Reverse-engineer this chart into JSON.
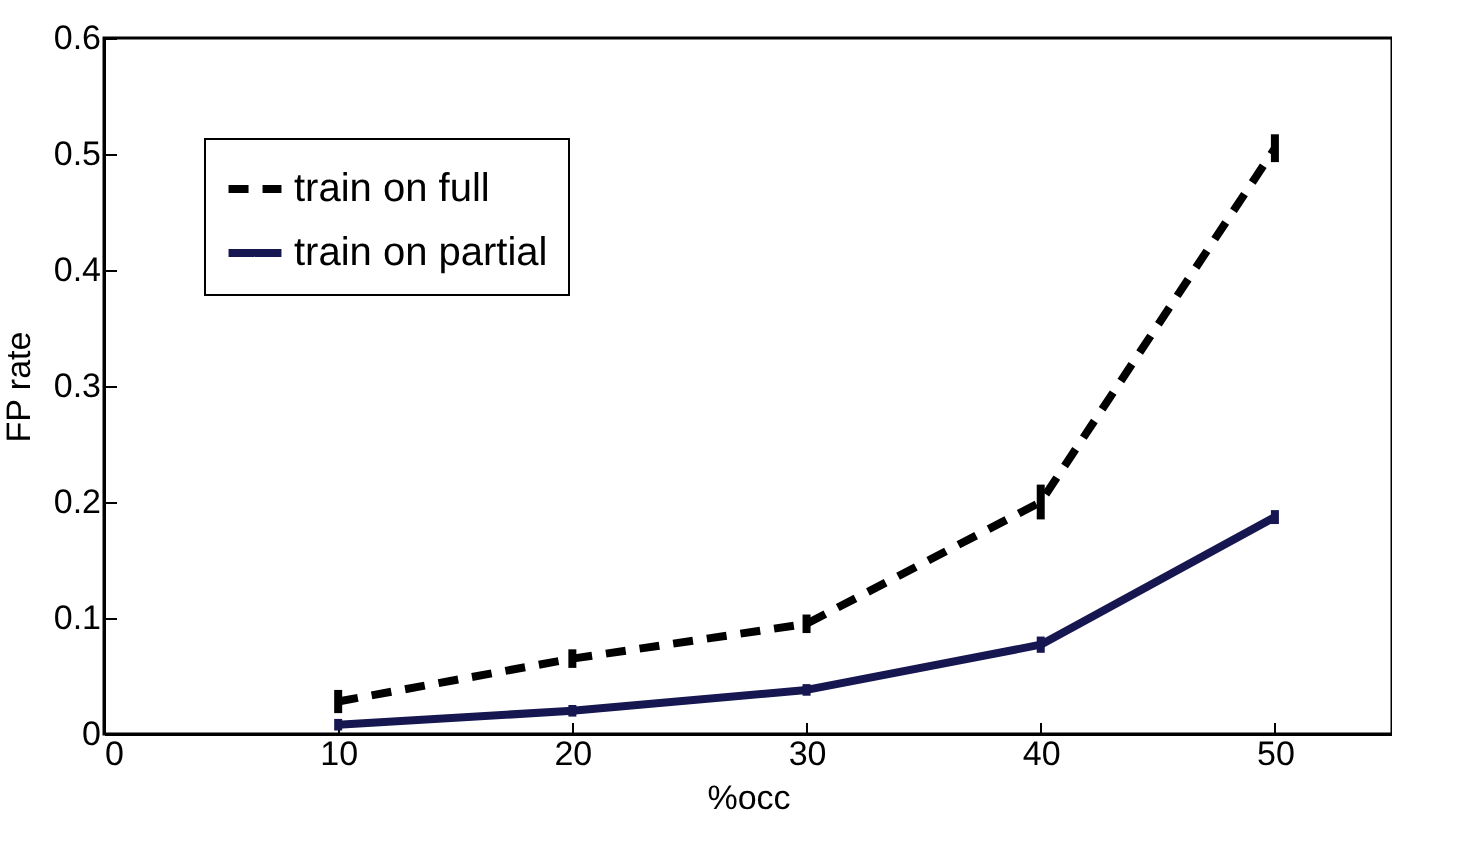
{
  "chart_data": {
    "type": "line",
    "xlabel": "%occ",
    "ylabel": "FP rate",
    "x": [
      10,
      20,
      30,
      40,
      50
    ],
    "series": [
      {
        "name": "train on full",
        "color": "#000000",
        "line_style": "dashed",
        "values": [
          0.028,
          0.065,
          0.095,
          0.2,
          0.505
        ],
        "errors": [
          0.01,
          0.008,
          0.008,
          0.015,
          0.012
        ]
      },
      {
        "name": "train on partial",
        "color": "#161650",
        "line_style": "solid",
        "values": [
          0.008,
          0.02,
          0.038,
          0.077,
          0.187
        ],
        "errors": [
          0.005,
          0.005,
          0.005,
          0.007,
          0.006
        ]
      }
    ],
    "xlim": [
      0,
      55
    ],
    "xticks": [
      0,
      10,
      20,
      30,
      40,
      50
    ],
    "ylim": [
      0,
      0.6
    ],
    "yticks": [
      0,
      0.1,
      0.2,
      0.3,
      0.4,
      0.5,
      0.6
    ],
    "grid": false,
    "legend": "top left",
    "marker": "none"
  }
}
